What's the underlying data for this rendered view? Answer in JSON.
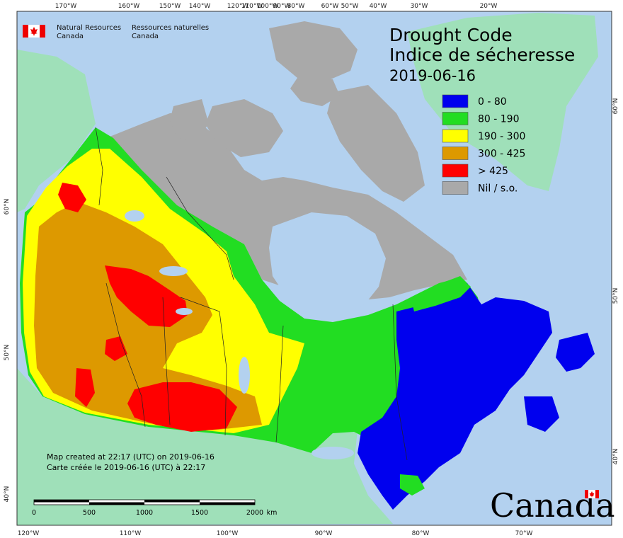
{
  "title": {
    "line1": "Drought Code",
    "line2": "Indice de sécheresse",
    "date": "2019-06-16"
  },
  "agency": {
    "en_line1": "Natural Resources",
    "en_line2": "Canada",
    "fr_line1": "Ressources naturelles",
    "fr_line2": "Canada"
  },
  "legend": [
    {
      "label": "0 - 80",
      "color": "#0000ee"
    },
    {
      "label": "80 - 190",
      "color": "#22dd22"
    },
    {
      "label": "190 - 300",
      "color": "#ffff00"
    },
    {
      "label": "300 - 425",
      "color": "#dd9900"
    },
    {
      "label": "> 425",
      "color": "#ff0000"
    },
    {
      "label": "Nil / s.o.",
      "color": "#a9a9a9"
    }
  ],
  "note": {
    "en": "Map created at 22:17 (UTC) on 2019-06-16",
    "fr": "Carte créée le 2019-06-16 (UTC) à 22:17"
  },
  "scale": {
    "labels": [
      "0",
      "500",
      "1000",
      "1500",
      "2000"
    ],
    "unit": "km"
  },
  "wordmark": "Canada",
  "top_ticks": [
    "170°W",
    "160°W",
    "150°W",
    "140°W",
    "120°W",
    "110°W",
    "100°W",
    "90°W",
    "80°W",
    "60°W",
    "50°W",
    "40°W",
    "30°W",
    "20°W"
  ],
  "bottom_ticks": [
    "120°W",
    "110°W",
    "100°W",
    "90°W",
    "80°W",
    "70°W"
  ],
  "left_ticks": [
    "60°N",
    "50°N",
    "40°N"
  ],
  "right_ticks": [
    "60°N",
    "50°N",
    "40°N"
  ],
  "colors": {
    "ocean": "#b3d1ef",
    "land_other": "#9fe0b9",
    "nil": "#a9a9a9",
    "border": "#222222"
  }
}
